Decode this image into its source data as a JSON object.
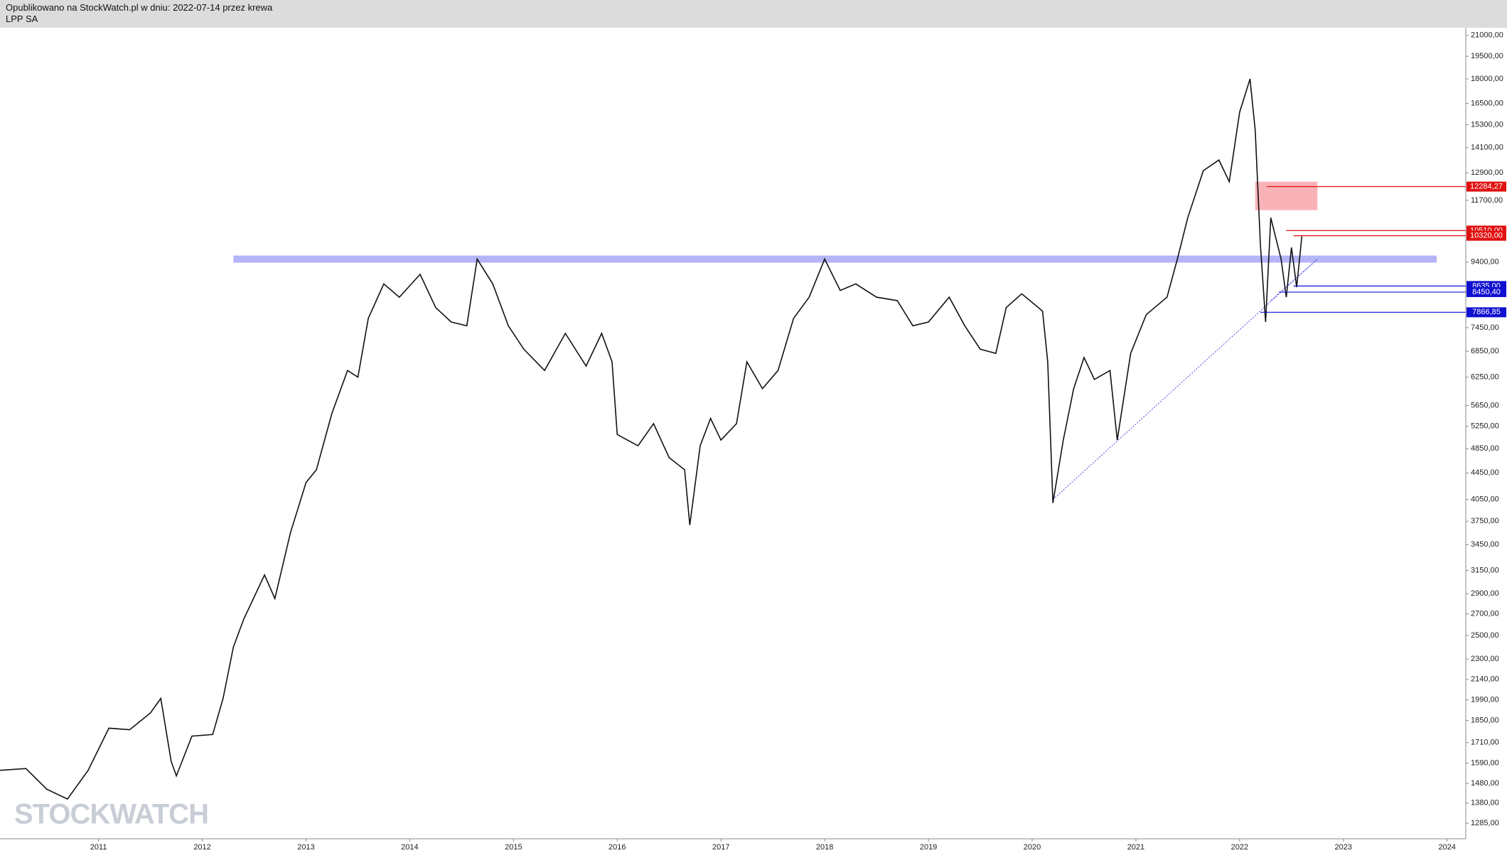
{
  "header": {
    "line1": "Opublikowano na StockWatch.pl w dniu: 2022-07-14 przez krewa",
    "line2": "LPP SA"
  },
  "watermark": "STOCKWATCH",
  "chart_data": {
    "type": "line",
    "log_scale": true,
    "grid": false,
    "xlim": [
      2010.05,
      2024.18
    ],
    "xticks": [
      2011,
      2012,
      2013,
      2014,
      2015,
      2016,
      2017,
      2018,
      2019,
      2020,
      2021,
      2022,
      2023,
      2024
    ],
    "ylim": [
      1216,
      21580
    ],
    "yticks": [
      {
        "value": 21000,
        "label": "21000,00"
      },
      {
        "value": 19500,
        "label": "19500,00"
      },
      {
        "value": 18000,
        "label": "18000,00"
      },
      {
        "value": 16500,
        "label": "16500,00"
      },
      {
        "value": 15300,
        "label": "15300,00"
      },
      {
        "value": 14100,
        "label": "14100,00"
      },
      {
        "value": 12900,
        "label": "12900,00"
      },
      {
        "value": 11700,
        "label": "11700,00"
      },
      {
        "value": 9400,
        "label": "9400,00"
      },
      {
        "value": 7450,
        "label": "7450,00"
      },
      {
        "value": 6850,
        "label": "6850,00"
      },
      {
        "value": 6250,
        "label": "6250,00"
      },
      {
        "value": 5650,
        "label": "5650,00"
      },
      {
        "value": 5250,
        "label": "5250,00"
      },
      {
        "value": 4850,
        "label": "4850,00"
      },
      {
        "value": 4450,
        "label": "4450,00"
      },
      {
        "value": 4050,
        "label": "4050,00"
      },
      {
        "value": 3750,
        "label": "3750,00"
      },
      {
        "value": 3450,
        "label": "3450,00"
      },
      {
        "value": 3150,
        "label": "3150,00"
      },
      {
        "value": 2900,
        "label": "2900,00"
      },
      {
        "value": 2700,
        "label": "2700,00"
      },
      {
        "value": 2500,
        "label": "2500,00"
      },
      {
        "value": 2300,
        "label": "2300,00"
      },
      {
        "value": 2140,
        "label": "2140,00"
      },
      {
        "value": 1990,
        "label": "1990,00"
      },
      {
        "value": 1850,
        "label": "1850,00"
      },
      {
        "value": 1710,
        "label": "1710,00"
      },
      {
        "value": 1590,
        "label": "1590,00"
      },
      {
        "value": 1480,
        "label": "1480,00"
      },
      {
        "value": 1380,
        "label": "1380,00"
      },
      {
        "value": 1285,
        "label": "1285,00"
      }
    ],
    "series": [
      {
        "color": "#111111",
        "x": [
          2010.05,
          2010.3,
          2010.5,
          2010.7,
          2010.9,
          2011.1,
          2011.3,
          2011.5,
          2011.6,
          2011.7,
          2011.75,
          2011.9,
          2012.1,
          2012.2,
          2012.3,
          2012.4,
          2012.6,
          2012.7,
          2012.85,
          2013.0,
          2013.1,
          2013.25,
          2013.4,
          2013.5,
          2013.6,
          2013.75,
          2013.9,
          2014.1,
          2014.25,
          2014.4,
          2014.55,
          2014.65,
          2014.8,
          2014.95,
          2015.1,
          2015.3,
          2015.5,
          2015.7,
          2015.85,
          2015.95,
          2016.0,
          2016.2,
          2016.35,
          2016.5,
          2016.65,
          2016.7,
          2016.8,
          2016.9,
          2017.0,
          2017.15,
          2017.25,
          2017.4,
          2017.55,
          2017.7,
          2017.85,
          2018.0,
          2018.15,
          2018.3,
          2018.5,
          2018.7,
          2018.85,
          2019.0,
          2019.2,
          2019.35,
          2019.5,
          2019.65,
          2019.75,
          2019.9,
          2020.1,
          2020.15,
          2020.2,
          2020.3,
          2020.4,
          2020.5,
          2020.6,
          2020.75,
          2020.82,
          2020.95,
          2021.1,
          2021.3,
          2021.4,
          2021.5,
          2021.65,
          2021.8,
          2021.9,
          2022.0,
          2022.1,
          2022.15,
          2022.2,
          2022.25,
          2022.3,
          2022.4,
          2022.45,
          2022.5,
          2022.55,
          2022.6
        ],
        "values": [
          1550,
          1560,
          1450,
          1400,
          1550,
          1800,
          1790,
          1900,
          2000,
          1600,
          1520,
          1750,
          1760,
          2000,
          2400,
          2650,
          3100,
          2850,
          3600,
          4300,
          4500,
          5500,
          6400,
          6250,
          7700,
          8700,
          8300,
          9000,
          8000,
          7600,
          7500,
          9500,
          8700,
          7500,
          6900,
          6400,
          7300,
          6500,
          7300,
          6600,
          5100,
          4900,
          5300,
          4700,
          4500,
          3700,
          4900,
          5400,
          5000,
          5300,
          6600,
          6000,
          6400,
          7700,
          8300,
          9500,
          8500,
          8700,
          8300,
          8200,
          7500,
          7600,
          8300,
          7500,
          6900,
          6800,
          8000,
          8400,
          7900,
          6600,
          4000,
          5000,
          6000,
          6700,
          6200,
          6400,
          5000,
          6800,
          7800,
          8300,
          9500,
          11000,
          13000,
          13500,
          12500,
          16000,
          18000,
          15000,
          10000,
          7600,
          11000,
          9500,
          8300,
          9900,
          8600,
          10300
        ]
      }
    ],
    "band": {
      "value": 9500,
      "from": 2012.3,
      "to": 2023.9,
      "color": "#b4b4f8"
    },
    "zone": {
      "x": [
        2022.15,
        2022.75
      ],
      "y": [
        11300,
        12500
      ],
      "color": "#f9b3b8"
    },
    "trendlines": [
      {
        "x": [
          2020.2,
          2022.75
        ],
        "y": [
          4050,
          9500
        ],
        "color": "#4a4ae0"
      },
      {
        "x": [
          2022.3,
          2022.75
        ],
        "y": [
          8200,
          9500
        ],
        "color": "#4a4ae0"
      }
    ],
    "levels": [
      {
        "value": 12284.27,
        "label": "12284,27",
        "from": 2022.26,
        "color": "#e01010"
      },
      {
        "value": 10510,
        "label": "10510,00",
        "from": 2022.45,
        "color": "#e01010"
      },
      {
        "value": 10320,
        "label": "10320,00",
        "from": 2022.52,
        "color": "#e01010"
      },
      {
        "value": 8635,
        "label": "8635,00",
        "from": 2022.52,
        "color": "#1010d0"
      },
      {
        "value": 8450.4,
        "label": "8450,40",
        "from": 2022.38,
        "color": "#1010d0"
      },
      {
        "value": 7866.85,
        "label": "7866,85",
        "from": 2022.2,
        "color": "#1010d0"
      }
    ]
  }
}
